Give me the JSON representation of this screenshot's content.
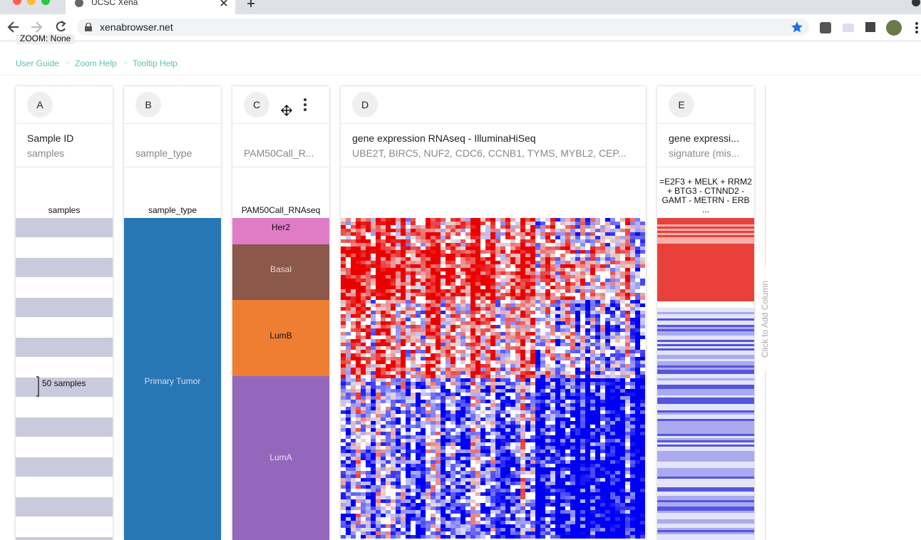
{
  "browser": {
    "tab_title": "UCSC Xena",
    "url": "xenabrowser.net"
  },
  "zoom": "ZOOM: None",
  "links": [
    "User Guide",
    "Zoom Help",
    "Tooltip Help"
  ],
  "columns": [
    {
      "id": "A",
      "title": "Sample ID",
      "subtitle": "samples",
      "field": "samples",
      "annotation": "50 samples"
    },
    {
      "id": "B",
      "subtitle": "sample_type",
      "field": "sample_type",
      "category": "Primary Tumor"
    },
    {
      "id": "C",
      "subtitle": "PAM50Call_R...",
      "field": "PAM50Call_RNAseq",
      "categories": [
        "Her2",
        "Basal",
        "LumB",
        "LumA"
      ]
    },
    {
      "id": "D",
      "title": "gene expression RNAseq - IlluminaHiSeq",
      "subtitle": "UBE2T, BIRC5, NUF2, CDC6, CCNB1, TYMS, MYBL2, CEP..."
    },
    {
      "id": "E",
      "title": "gene expressi...",
      "subtitle": "signature (mis...",
      "field_lines": [
        "=E2F3 + MELK + RRM2",
        "+ BTG3 - CTNND2 -",
        "GAMT - METRN - ERB",
        "..."
      ]
    }
  ],
  "add_column": "Click to Add Column"
}
